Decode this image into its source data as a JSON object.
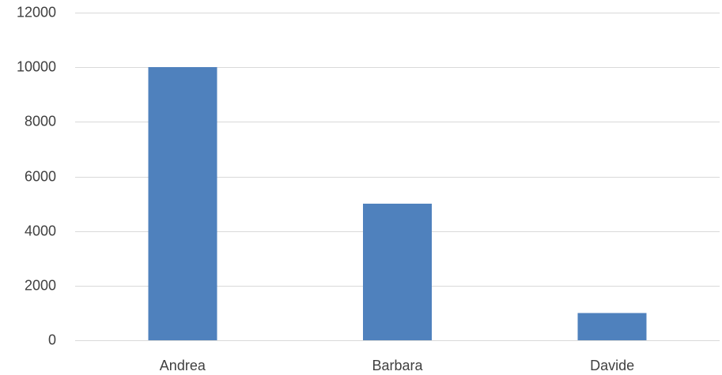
{
  "chart_data": {
    "type": "bar",
    "title": "",
    "xlabel": "",
    "ylabel": "",
    "categories": [
      "Andrea",
      "Barbara",
      "Davide"
    ],
    "values": [
      10000,
      5000,
      1000
    ],
    "ylim": [
      0,
      12000
    ],
    "yticks": [
      "0",
      "2000",
      "4000",
      "6000",
      "8000",
      "10000",
      "12000"
    ],
    "grid": "horizontal",
    "legend": "none",
    "bar_color": "#4f81bd",
    "grid_color": "#d9d9d9",
    "text_color": "#404040"
  }
}
